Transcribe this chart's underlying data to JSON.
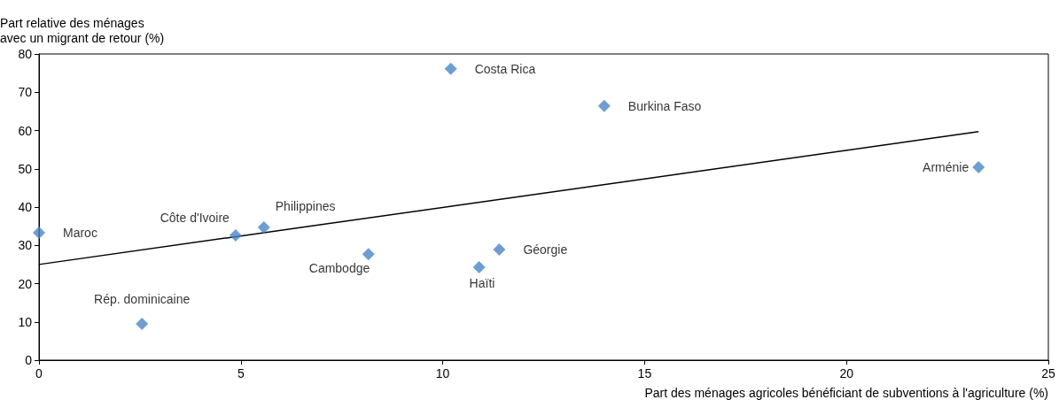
{
  "chart_data": {
    "type": "scatter",
    "ylabel": "Part relative des ménages\navec un migrant de retour (%)",
    "xlabel": "Part des ménages agricoles bénéficiant de subventions à l'agriculture (%)",
    "xlim": [
      0,
      25
    ],
    "xticks": [
      0,
      5,
      10,
      15,
      20,
      25
    ],
    "ylim": [
      0,
      80
    ],
    "yticks": [
      0,
      10,
      20,
      30,
      40,
      50,
      60,
      70,
      80
    ],
    "grid": false,
    "marker": "diamond",
    "series": [
      {
        "color": "#4a86c6",
        "x": [
          0,
          2.55,
          4.87,
          5.57,
          8.16,
          10.2,
          10.9,
          11.4,
          14.0,
          23.27
        ],
        "values": [
          33.3,
          9.5,
          32.6,
          34.7,
          27.7,
          76.1,
          24.3,
          28.9,
          66.4,
          50.4
        ],
        "value_labels": [
          "Maroc",
          "Rép. dominicaine",
          "Côte d'Ivoire",
          "Philippines",
          "Cambodge",
          "Costa Rica",
          "Haïti",
          "Géorgie",
          "Burkina Faso",
          "Arménie"
        ]
      },
      {
        "type": "line",
        "color": "#000000",
        "marker": "none",
        "line_style": "solid",
        "x": [
          0,
          23.27
        ],
        "values": [
          25.0,
          59.7
        ]
      }
    ]
  }
}
